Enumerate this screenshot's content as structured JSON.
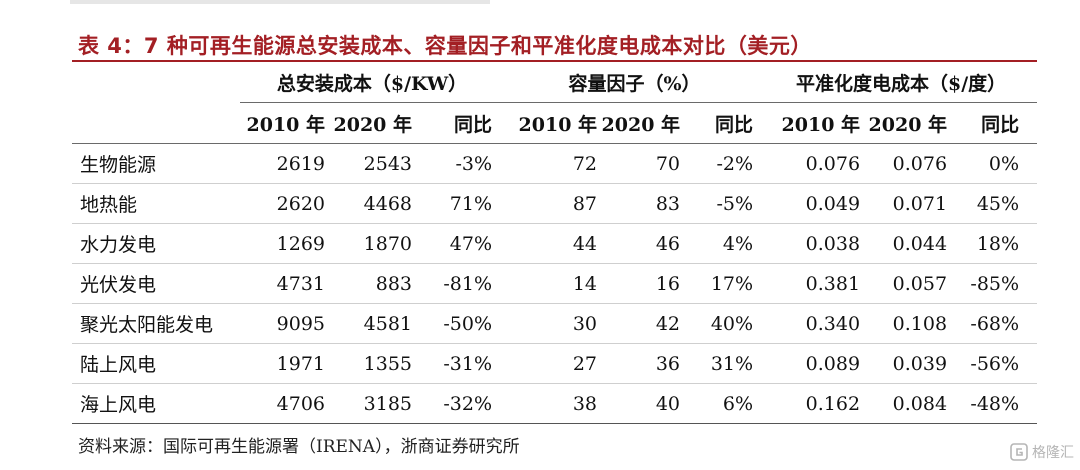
{
  "title": "表 4：7 种可再生能源总安装成本、容量因子和平准化度电成本对比（美元）",
  "header": {
    "groups": [
      "总安装成本（$/KW）",
      "容量因子（%）",
      "平准化度电成本（$/度）"
    ],
    "subheads": [
      "2010 年",
      "2020 年",
      "同比"
    ]
  },
  "rows": [
    {
      "name": "生物能源",
      "vals": [
        "2619",
        "2543",
        "-3%",
        "72",
        "70",
        "-2%",
        "0.076",
        "0.076",
        "0%"
      ]
    },
    {
      "name": "地热能",
      "vals": [
        "2620",
        "4468",
        "71%",
        "87",
        "83",
        "-5%",
        "0.049",
        "0.071",
        "45%"
      ]
    },
    {
      "name": "水力发电",
      "vals": [
        "1269",
        "1870",
        "47%",
        "44",
        "46",
        "4%",
        "0.038",
        "0.044",
        "18%"
      ]
    },
    {
      "name": "光伏发电",
      "vals": [
        "4731",
        "883",
        "-81%",
        "14",
        "16",
        "17%",
        "0.381",
        "0.057",
        "-85%"
      ]
    },
    {
      "name": "聚光太阳能发电",
      "vals": [
        "9095",
        "4581",
        "-50%",
        "30",
        "42",
        "40%",
        "0.340",
        "0.108",
        "-68%"
      ]
    },
    {
      "name": "陆上风电",
      "vals": [
        "1971",
        "1355",
        "-31%",
        "27",
        "36",
        "31%",
        "0.089",
        "0.039",
        "-56%"
      ]
    },
    {
      "name": "海上风电",
      "vals": [
        "4706",
        "3185",
        "-32%",
        "38",
        "40",
        "6%",
        "0.162",
        "0.084",
        "-48%"
      ]
    }
  ],
  "source": "资料来源：国际可再生能源署（IRENA），浙商证券研究所",
  "watermark": "格隆汇",
  "colors": {
    "title": "#a31f24",
    "watermark": "#b5b5b5"
  }
}
